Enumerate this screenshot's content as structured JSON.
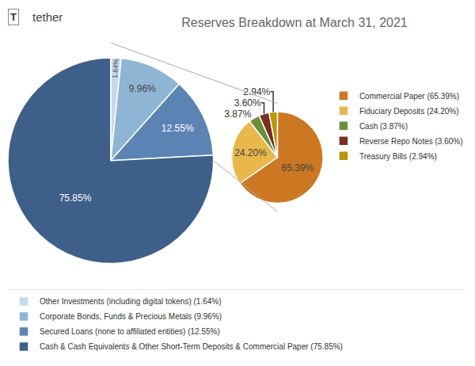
{
  "chart_data": [
    {
      "type": "pie",
      "title": "Reserves Breakdown at March 31, 2021",
      "annotations": [
        "T",
        "tether"
      ],
      "categories": [
        "Other Investments (including digital tokens) (1.64%)",
        "Corporate Bonds, Funds & Precious Metals (9.96%)",
        "Secured Loans (none to affiliated entities) (12.55%)",
        "Cash & Cash Equivalents & Other Short-Term Deposits & Commercial Paper (75.85%)"
      ],
      "values": [
        1.64,
        9.96,
        12.55,
        75.85
      ],
      "value_labels": [
        "1.64%",
        "9.96%",
        "12.55%",
        "75.85%"
      ],
      "colors": [
        "#c5d9ec",
        "#8fb5d5",
        "#5b84b4",
        "#3e5f8a"
      ],
      "data_labels": true,
      "legend": "bottom"
    },
    {
      "type": "pie",
      "categories": [
        "Commercial Paper (65.39%)",
        "Fiduciary Deposits (24.20%)",
        "Cash (3.87%)",
        "Reverse Repo Notes (3.60%)",
        "Treasury Bills (2.94%)"
      ],
      "values": [
        65.39,
        24.2,
        3.87,
        3.6,
        2.94
      ],
      "value_labels": [
        "65.39%",
        "24.20%",
        "3.87%",
        "3.60%",
        "2.94%"
      ],
      "colors": [
        "#cc7722",
        "#e8b84b",
        "#6a8f3a",
        "#7a3020",
        "#b8960c"
      ],
      "data_labels": true,
      "legend": "right"
    }
  ]
}
